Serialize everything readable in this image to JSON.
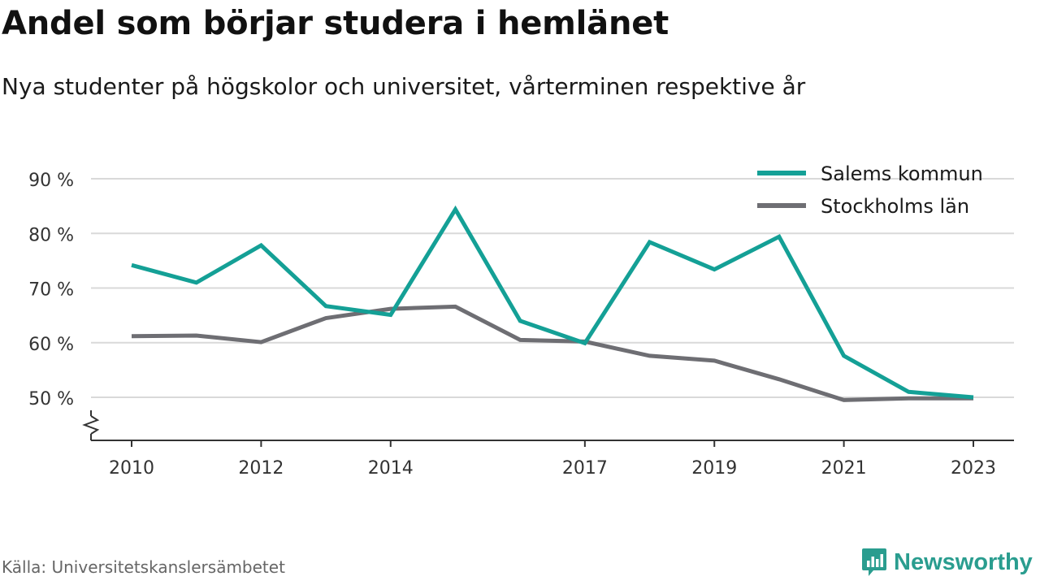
{
  "header": {
    "title": "Andel som börjar studera i hemlänet",
    "subtitle": "Nya studenter på högskolor och universitet, vårterminen respektive år"
  },
  "footer": {
    "source": "Källa: Universitetskanslersämbetet",
    "brand": "Newsworthy",
    "brand_icon": "newsworthy-logo-icon"
  },
  "colors": {
    "salem": "#14a096",
    "stockholm": "#6e6e73",
    "grid": "#d9d9d9",
    "axis": "#333333",
    "brand": "#2a9d8f"
  },
  "chart_data": {
    "type": "line",
    "title": "Andel som börjar studera i hemlänet",
    "subtitle": "Nya studenter på högskolor och universitet, vårterminen respektive år",
    "x": [
      2010,
      2011,
      2012,
      2013,
      2014,
      2015,
      2016,
      2017,
      2018,
      2019,
      2020,
      2021,
      2022,
      2023
    ],
    "x_ticks": [
      2010,
      2012,
      2014,
      2017,
      2019,
      2021,
      2023
    ],
    "y_ticks": [
      50,
      60,
      70,
      80,
      90
    ],
    "y_tick_labels": [
      "50 %",
      "60 %",
      "70 %",
      "80 %",
      "90 %"
    ],
    "ylim": [
      42,
      90
    ],
    "y_axis_break": true,
    "grid": true,
    "legend_position": "top-right",
    "series": [
      {
        "name": "Salems kommun",
        "color": "#14a096",
        "values": [
          74.2,
          71.0,
          77.8,
          66.7,
          65.1,
          84.4,
          64.0,
          59.9,
          78.4,
          73.4,
          79.4,
          57.6,
          51.0,
          50.0
        ]
      },
      {
        "name": "Stockholms län",
        "color": "#6e6e73",
        "values": [
          61.2,
          61.3,
          60.1,
          64.5,
          66.2,
          66.6,
          60.5,
          60.2,
          57.6,
          56.7,
          53.3,
          49.5,
          49.8,
          49.8
        ]
      }
    ]
  }
}
